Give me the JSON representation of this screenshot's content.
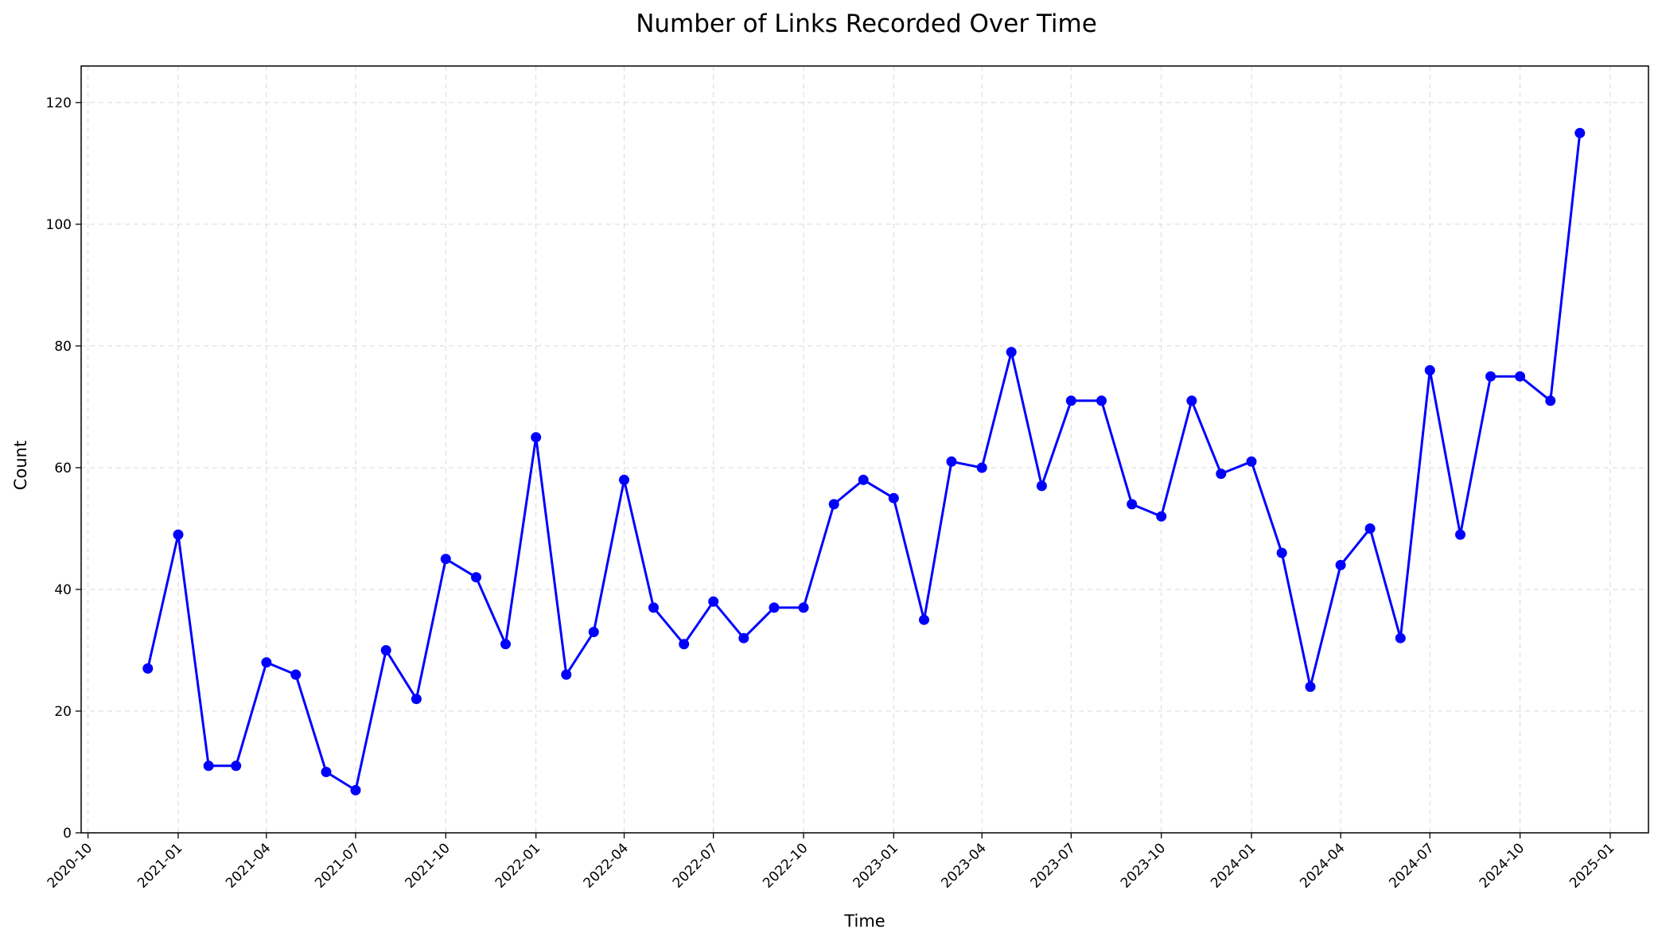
{
  "chart_data": {
    "type": "line",
    "title": "Number of Links Recorded Over Time",
    "xlabel": "Time",
    "ylabel": "Count",
    "ylim": [
      0,
      126
    ],
    "xlim": [
      "2020-09-24",
      "2025-02-09"
    ],
    "grid": true,
    "line_color": "#0000ff",
    "x_ticks": [
      "2020-10",
      "2021-01",
      "2021-04",
      "2021-07",
      "2021-10",
      "2022-01",
      "2022-04",
      "2022-07",
      "2022-10",
      "2023-01",
      "2023-04",
      "2023-07",
      "2023-10",
      "2024-01",
      "2024-04",
      "2024-07",
      "2024-10",
      "2025-01"
    ],
    "y_ticks": [
      0,
      20,
      40,
      60,
      80,
      100,
      120
    ],
    "x": [
      "2020-12-01",
      "2021-01-01",
      "2021-02-01",
      "2021-03-01",
      "2021-04-01",
      "2021-05-01",
      "2021-06-01",
      "2021-07-01",
      "2021-08-01",
      "2021-09-01",
      "2021-10-01",
      "2021-11-01",
      "2021-12-01",
      "2022-01-01",
      "2022-02-01",
      "2022-03-01",
      "2022-04-01",
      "2022-05-01",
      "2022-06-01",
      "2022-07-01",
      "2022-08-01",
      "2022-09-01",
      "2022-10-01",
      "2022-11-01",
      "2022-12-01",
      "2023-01-01",
      "2023-02-01",
      "2023-03-01",
      "2023-04-01",
      "2023-05-01",
      "2023-06-01",
      "2023-07-01",
      "2023-08-01",
      "2023-09-01",
      "2023-10-01",
      "2023-11-01",
      "2023-12-01",
      "2024-01-01",
      "2024-02-01",
      "2024-03-01",
      "2024-04-01",
      "2024-05-01",
      "2024-06-01",
      "2024-07-01",
      "2024-08-01",
      "2024-09-01",
      "2024-10-01",
      "2024-11-01",
      "2024-12-01"
    ],
    "series": [
      {
        "values": [
          27,
          49,
          11,
          11,
          28,
          26,
          10,
          7,
          30,
          22,
          45,
          42,
          31,
          65,
          26,
          33,
          58,
          37,
          31,
          38,
          32,
          37,
          37,
          54,
          58,
          55,
          35,
          61,
          60,
          79,
          57,
          71,
          71,
          54,
          52,
          71,
          59,
          61,
          46,
          24,
          44,
          50,
          32,
          76,
          49,
          75,
          75,
          71,
          115
        ]
      }
    ]
  }
}
